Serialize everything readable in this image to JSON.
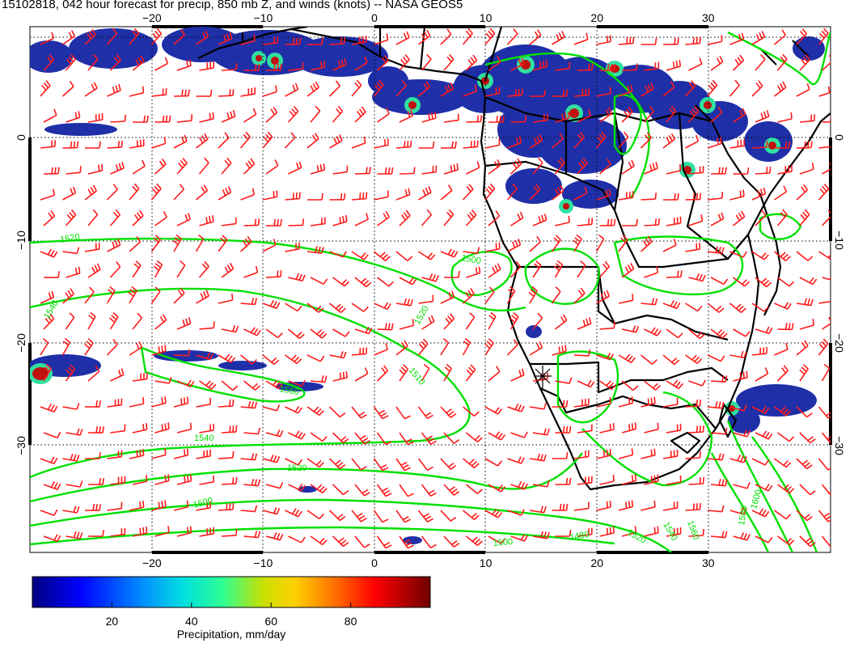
{
  "title": "15102818, 042 hour forecast for precip, 850 mb Z, and winds (knots) -- NASA GEOS5",
  "map": {
    "lon_range": [
      -30,
      42
    ],
    "lat_range": [
      -40,
      10
    ],
    "lon_ticks": [
      -20,
      -10,
      0,
      10,
      20,
      30
    ],
    "lat_ticks": [
      0,
      -10,
      -20,
      -30
    ],
    "gridlines": "dotted",
    "colors": {
      "wind_barbs": "#ff1a1a",
      "contours": "#00e000",
      "coastlines": "#000000"
    }
  },
  "chart_data": {
    "type": "heatmap",
    "title": "15102818, 042 hour forecast for precip, 850 mb Z, and winds (knots) -- NASA GEOS5",
    "layers": [
      "precipitation shading",
      "850 mb geopotential height contours",
      "wind barbs (knots)"
    ],
    "x_ticks": [
      -20,
      -10,
      0,
      10,
      20,
      30
    ],
    "y_ticks": [
      0,
      -10,
      -20,
      -30
    ],
    "contour_labels": [
      "1520",
      "1500",
      "1540",
      "1520",
      "1510",
      "1560",
      "1540",
      "1520",
      "1500",
      "1480",
      "1500",
      "1520",
      "1540",
      "1560",
      "1580",
      "1600"
    ],
    "colorbar": {
      "label": "Precipitation, mm/day",
      "ticks": [
        20,
        40,
        60,
        80
      ],
      "range": [
        0,
        100
      ],
      "colors": [
        "#000080",
        "#0000ff",
        "#0080ff",
        "#00ffff",
        "#40ff80",
        "#c0ff00",
        "#ffff00",
        "#ff8000",
        "#ff0000",
        "#800000"
      ]
    }
  }
}
